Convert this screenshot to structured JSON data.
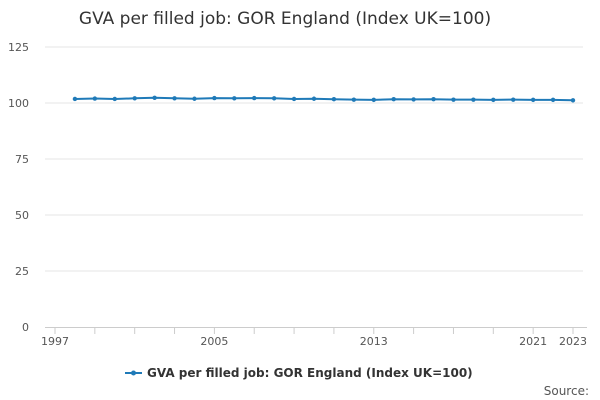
{
  "chart_data": {
    "type": "line",
    "title": "GVA per filled job: GOR England (Index UK=100)",
    "series": [
      {
        "name": "GVA per filled job: GOR England (Index UK=100)",
        "color": "#1f7ab8",
        "x": [
          1998,
          1999,
          2000,
          2001,
          2002,
          2003,
          2004,
          2005,
          2006,
          2007,
          2008,
          2009,
          2010,
          2011,
          2012,
          2013,
          2014,
          2015,
          2016,
          2017,
          2018,
          2019,
          2020,
          2021,
          2022,
          2023
        ],
        "values": [
          101.8,
          102.0,
          101.8,
          102.1,
          102.3,
          102.1,
          101.9,
          102.2,
          102.1,
          102.2,
          102.1,
          101.8,
          101.9,
          101.7,
          101.5,
          101.4,
          101.7,
          101.6,
          101.7,
          101.5,
          101.5,
          101.4,
          101.5,
          101.4,
          101.4,
          101.2
        ]
      }
    ],
    "x_tick_labels": [
      "1997",
      "2005",
      "2013",
      "2021",
      "2023"
    ],
    "y_ticks": [
      0,
      25,
      50,
      75,
      100,
      125
    ],
    "xlim": [
      1997,
      2023
    ],
    "ylim": [
      0,
      125
    ],
    "grid": true,
    "legend_position": "bottom"
  },
  "footer": {
    "source_label": "Source:"
  }
}
